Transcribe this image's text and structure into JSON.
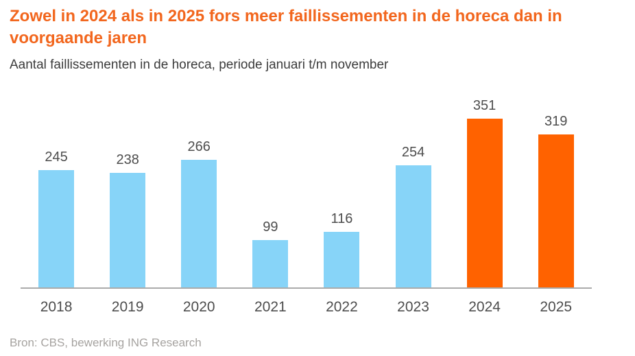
{
  "header": {
    "title": "Zowel in 2024 als in 2025 fors meer faillissementen in de horeca dan in voorgaande jaren",
    "subtitle": "Aantal faillissementen in de horeca, periode januari t/m november"
  },
  "chart_data": {
    "type": "bar",
    "categories": [
      "2018",
      "2019",
      "2020",
      "2021",
      "2022",
      "2023",
      "2024",
      "2025"
    ],
    "values": [
      245,
      238,
      266,
      99,
      116,
      254,
      351,
      319
    ],
    "highlight_categories": [
      "2024",
      "2025"
    ],
    "title": "Zowel in 2024 als in 2025 fors meer faillissementen in de horeca dan in voorgaande jaren",
    "subtitle": "Aantal faillissementen in de horeca, periode januari t/m november",
    "xlabel": "",
    "ylabel": "",
    "ylim": [
      0,
      360
    ],
    "grid": false,
    "legend": false,
    "value_labels": true,
    "source": "Bron: CBS, bewerking ING Research"
  },
  "footer": {
    "source": "Bron: CBS, bewerking ING Research"
  },
  "colors": {
    "title": "#F2661D",
    "bar_default": "#87D4F8",
    "bar_highlight": "#FF6200",
    "axis": "#ABABAB",
    "label": "#4D4D4D",
    "subtitle": "#3C3C3C",
    "source": "#A6A3A0"
  }
}
